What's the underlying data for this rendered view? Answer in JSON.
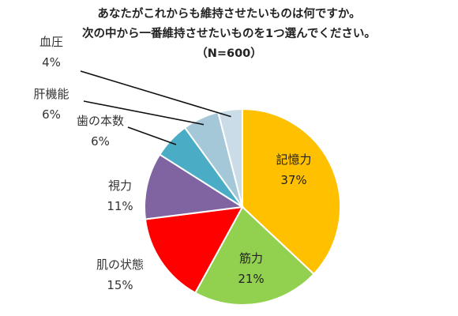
{
  "chart_data": {
    "type": "pie",
    "title_lines": [
      "あなたがこれからも維持させたいものは何ですか。",
      "次の中から一番維持させたいものを1つ選んでください。",
      "（N=600）"
    ],
    "slices": [
      {
        "label": "記憶力",
        "value": 37,
        "value_label": "37%",
        "color": "#FFC000"
      },
      {
        "label": "筋力",
        "value": 21,
        "value_label": "21%",
        "color": "#92D050"
      },
      {
        "label": "肌の状態",
        "value": 15,
        "value_label": "15%",
        "color": "#FF0000"
      },
      {
        "label": "視力",
        "value": 11,
        "value_label": "11%",
        "color": "#8064A2"
      },
      {
        "label": "歯の本数",
        "value": 6,
        "value_label": "6%",
        "color": "#4BACC6"
      },
      {
        "label": "肝機能",
        "value": 6,
        "value_label": "6%",
        "color": "#A5C8D8"
      },
      {
        "label": "血圧",
        "value": 4,
        "value_label": "4%",
        "color": "#C9DCE8"
      }
    ],
    "start_angle_deg": 0,
    "direction": "clockwise"
  }
}
